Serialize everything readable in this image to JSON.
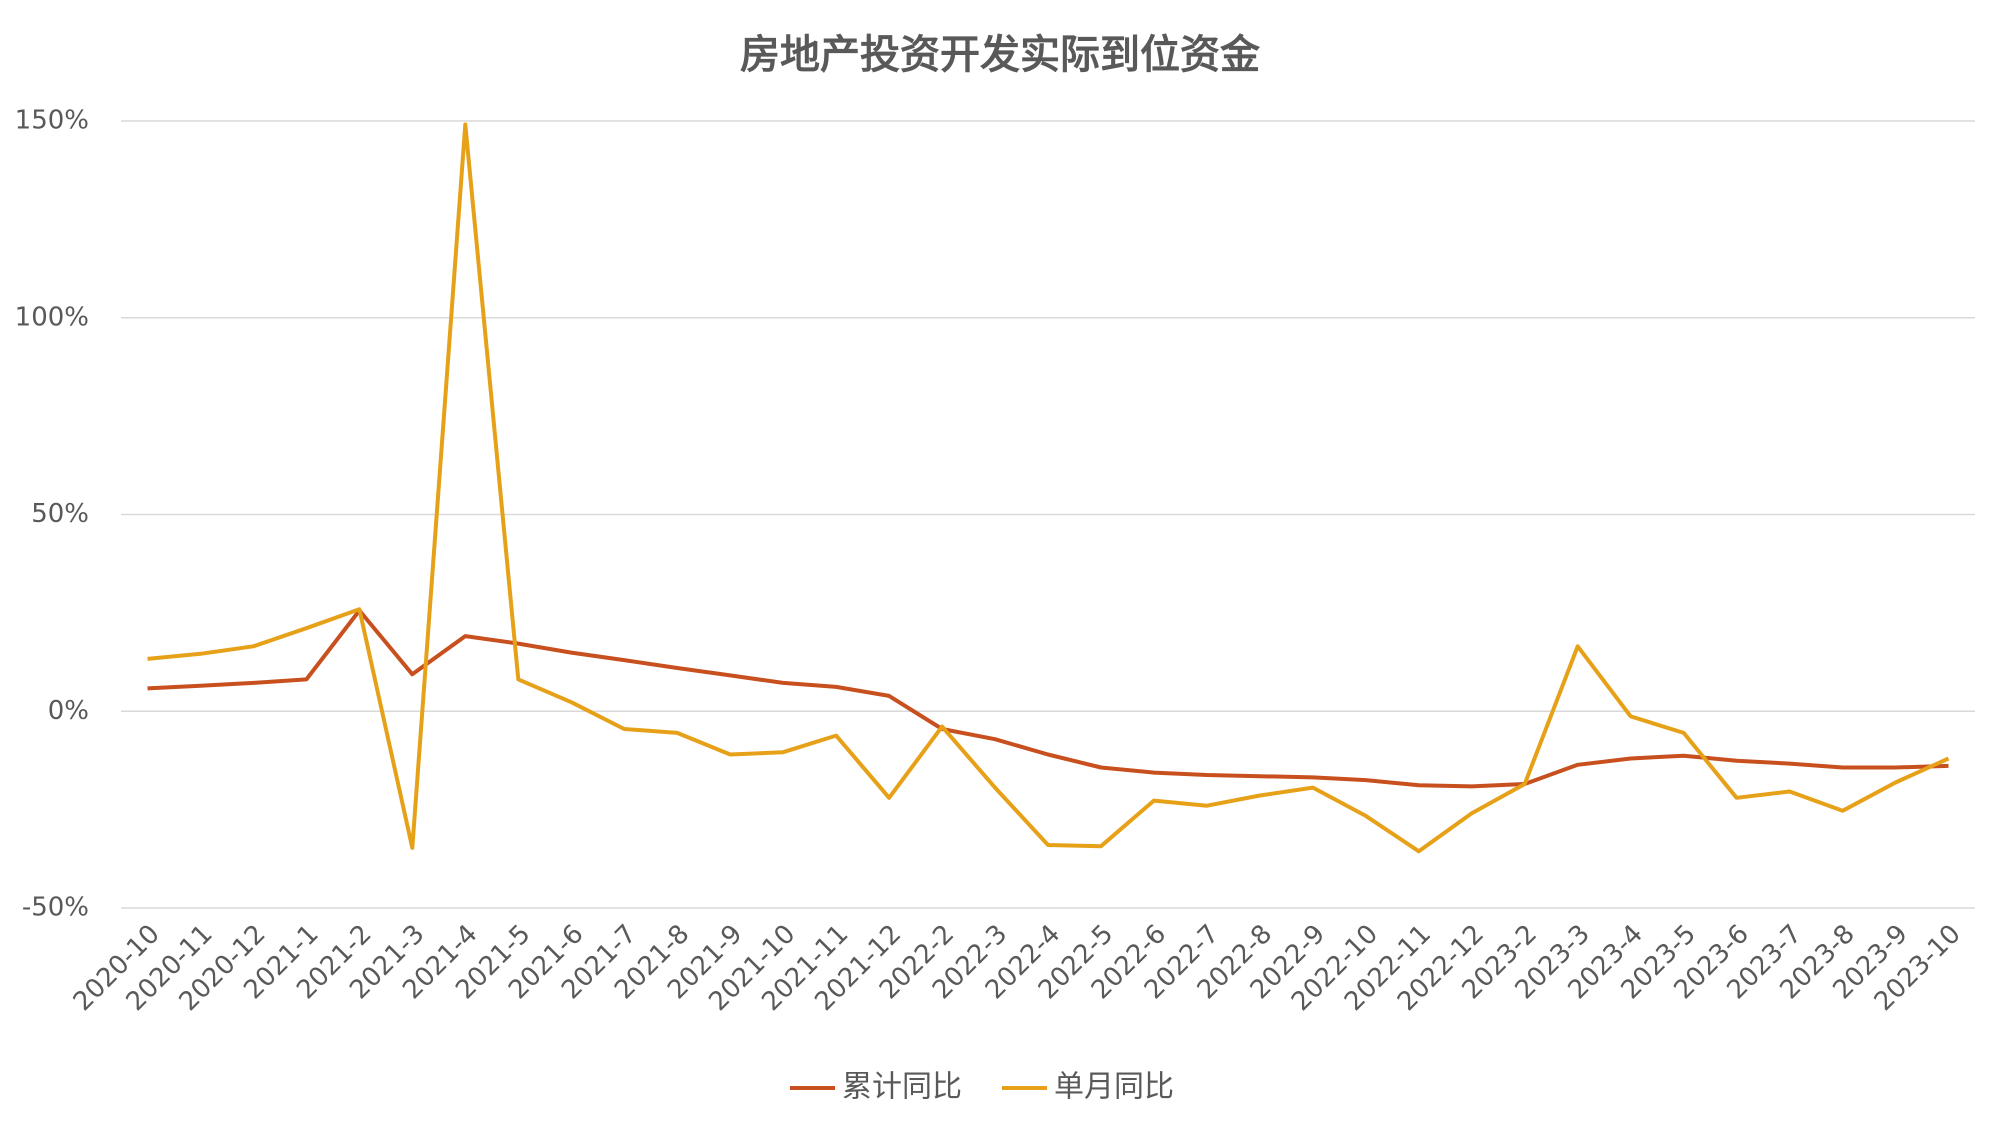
{
  "chart_data": {
    "type": "line",
    "title": "房地产投资开发实际到位资金",
    "categories": [
      "2020-10",
      "2020-11",
      "2020-12",
      "2021-1",
      "2021-2",
      "2021-3",
      "2021-4",
      "2021-5",
      "2021-6",
      "2021-7",
      "2021-8",
      "2021-9",
      "2021-10",
      "2021-11",
      "2021-12",
      "2022-2",
      "2022-3",
      "2022-4",
      "2022-5",
      "2022-6",
      "2022-7",
      "2022-8",
      "2022-9",
      "2022-10",
      "2022-11",
      "2022-12",
      "2023-2",
      "2023-3",
      "2023-4",
      "2023-5",
      "2023-6",
      "2023-7",
      "2023-8",
      "2023-9",
      "2023-10"
    ],
    "series": [
      {
        "name": "累计同比",
        "color": "#c8501e",
        "values": [
          5.8,
          6.5,
          7.2,
          8.1,
          25.6,
          9.4,
          19.1,
          17.2,
          14.9,
          13.0,
          11.0,
          9.1,
          7.2,
          6.2,
          3.9,
          -4.5,
          -7.1,
          -11.0,
          -14.3,
          -15.6,
          -16.2,
          -16.5,
          -16.8,
          -17.5,
          -18.8,
          -19.1,
          -18.5,
          -13.6,
          -12.0,
          -11.3,
          -12.6,
          -13.3,
          -14.3,
          -14.3,
          -13.9
        ]
      },
      {
        "name": "单月同比",
        "color": "#e6a118",
        "values": [
          13.3,
          14.6,
          16.5,
          21.1,
          25.9,
          -34.7,
          149.1,
          8.1,
          2.3,
          -4.5,
          -5.5,
          -11.0,
          -10.4,
          -6.2,
          -22.0,
          -3.9,
          -19.4,
          -34.0,
          -34.3,
          -22.7,
          -24.0,
          -21.4,
          -19.4,
          -26.6,
          -35.6,
          -25.9,
          -18.5,
          16.5,
          -1.3,
          -5.5,
          -22.0,
          -20.4,
          -25.3,
          -18.1,
          -12.0
        ]
      }
    ],
    "ylim": [
      -50,
      150
    ],
    "yticks": [
      {
        "value": -50,
        "label": "-50%"
      },
      {
        "value": 0,
        "label": "0%"
      },
      {
        "value": 50,
        "label": "50%"
      },
      {
        "value": 100,
        "label": "100%"
      },
      {
        "value": 150,
        "label": "150%"
      }
    ],
    "grid": true,
    "legend": "bottom"
  }
}
